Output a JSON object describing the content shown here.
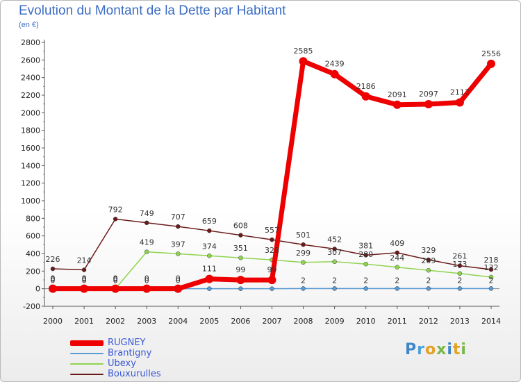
{
  "header": {
    "title": "Evolution du Montant de la Dette par Habitant",
    "unit": "(en €)"
  },
  "logo": {
    "letters": [
      "P",
      "r",
      "o",
      "x",
      "i",
      "t",
      "i"
    ],
    "colors": [
      "#3e86c6",
      "#4ea2d8",
      "#e6a022",
      "#7ab648",
      "#3e86c6",
      "#e6a022",
      "#7ab648"
    ]
  },
  "chart_data": {
    "type": "line",
    "title": "Evolution du Montant de la Dette par Habitant",
    "ylabel": "(en €)",
    "xlabel": "",
    "x": [
      "2000",
      "2001",
      "2002",
      "2003",
      "2004",
      "2005",
      "2006",
      "2007",
      "2008",
      "2009",
      "2010",
      "2011",
      "2012",
      "2013",
      "2014"
    ],
    "ylim": [
      -200,
      2800
    ],
    "yticks": [
      -200,
      0,
      200,
      400,
      600,
      800,
      1000,
      1200,
      1400,
      1600,
      1800,
      2000,
      2200,
      2400,
      2600,
      2800
    ],
    "grid": false,
    "legend": "bottom-left",
    "series": [
      {
        "name": "RUGNEY",
        "color": "#ee0000",
        "values": [
          0,
          0,
          0,
          0,
          0,
          111,
          99,
          99,
          2585,
          2439,
          2186,
          2091,
          2097,
          2117,
          2556
        ],
        "labels": [
          "0",
          "0",
          "0",
          "0",
          "0",
          "111",
          "99",
          "99",
          "2585",
          "2439",
          "2186",
          "2091",
          "2097",
          "2117",
          "2556"
        ]
      },
      {
        "name": "Brantigny",
        "color": "#5b9bd5",
        "values": [
          0,
          0,
          0,
          0,
          0,
          0,
          0,
          0,
          2,
          2,
          2,
          2,
          2,
          2,
          2
        ],
        "labels": [
          "0",
          "0",
          "0",
          "0",
          "0",
          "",
          "",
          "",
          "2",
          "2",
          "2",
          "2",
          "2",
          "2",
          "2"
        ]
      },
      {
        "name": "Ubexy",
        "color": "#8fd44f",
        "values": [
          0,
          0,
          0,
          419,
          397,
          374,
          351,
          328,
          299,
          307,
          280,
          244,
          209,
          173,
          132
        ],
        "labels": [
          "0",
          "0",
          "0",
          "419",
          "397",
          "374",
          "351",
          "328",
          "299",
          "307",
          "280",
          "244",
          "209",
          "173",
          "132"
        ]
      },
      {
        "name": "Bouxurulles",
        "color": "#6b1a1a",
        "values": [
          226,
          214,
          792,
          749,
          707,
          659,
          608,
          557,
          501,
          452,
          381,
          409,
          329,
          261,
          218
        ],
        "labels": [
          "226",
          "214",
          "792",
          "749",
          "707",
          "659",
          "608",
          "557",
          "501",
          "452",
          "381",
          "409",
          "329",
          "261",
          "218"
        ]
      }
    ]
  }
}
